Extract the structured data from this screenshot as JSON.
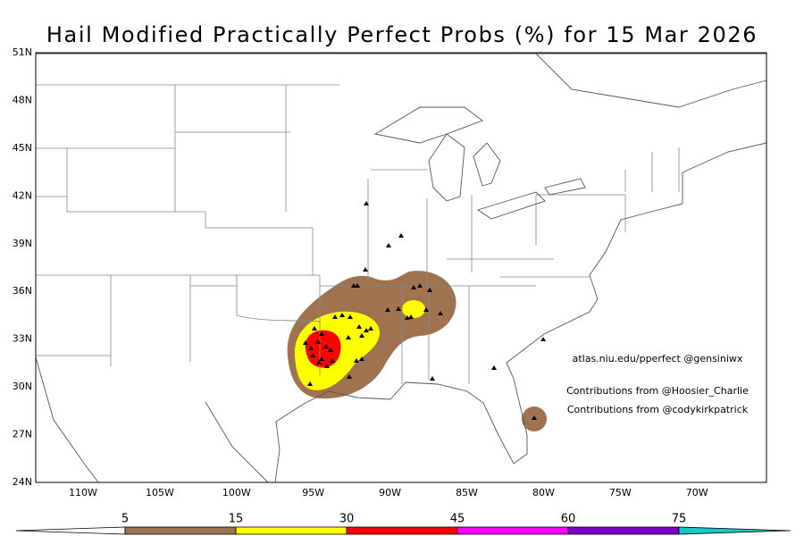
{
  "map": {
    "title": "Hail Modified Practically Perfect Probs (%) for 15 Mar 2026",
    "lat_labels": [
      "51N",
      "48N",
      "45N",
      "42N",
      "39N",
      "36N",
      "33N",
      "30N",
      "27N",
      "24N"
    ],
    "lon_labels": [
      "110W",
      "105W",
      "100W",
      "95W",
      "90W",
      "85W",
      "80W",
      "75W",
      "70W"
    ],
    "credits": [
      "atlas.niu.edu/pperfect @gensiniwx",
      "Contributions from @Hoosier_Charlie",
      "Contributions from @codykirkpatrick"
    ]
  },
  "colorbar": {
    "levels": [
      5,
      15,
      30,
      45,
      60,
      75
    ],
    "colors": [
      "#ffffff",
      "#a07350",
      "#ffff00",
      "#ff0000",
      "#ff00ff",
      "#7d00c8",
      "#19c8c8"
    ]
  }
}
